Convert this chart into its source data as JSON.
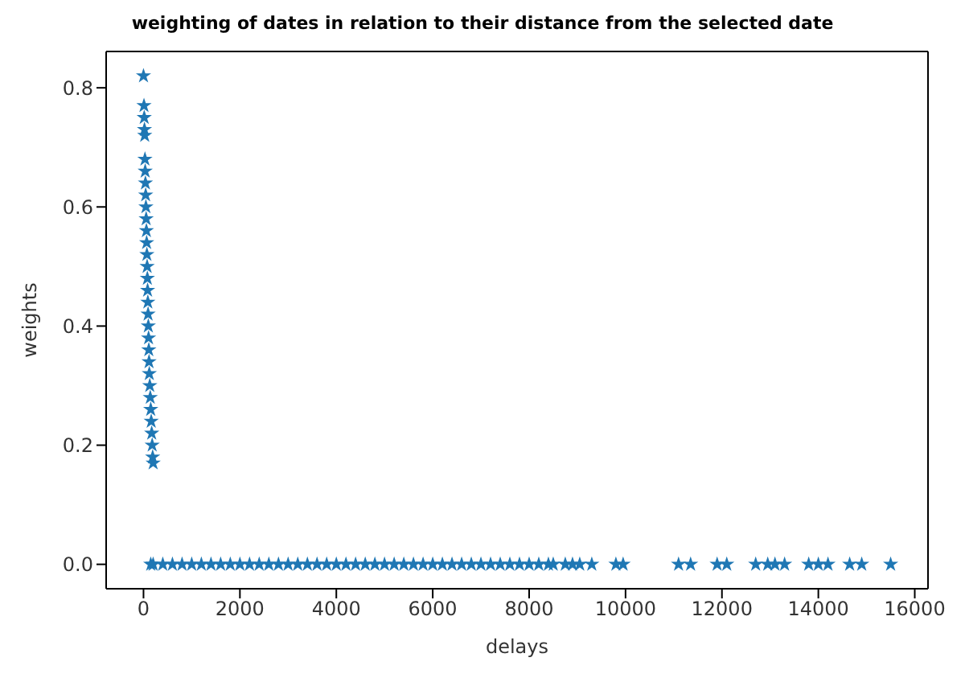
{
  "chart_data": {
    "type": "scatter",
    "title": "weighting of dates in relation to their distance from the selected date",
    "xlabel": "delays",
    "ylabel": "weights",
    "marker": "star",
    "legend": false,
    "xlim": [
      -775,
      16275
    ],
    "xticks": [
      0,
      2000,
      4000,
      6000,
      8000,
      10000,
      12000,
      14000,
      16000
    ],
    "ylim": [
      -0.041,
      0.861
    ],
    "yticks": [
      {
        "value": 0,
        "label": "0.0"
      },
      {
        "value": 0.2,
        "label": "0.2"
      },
      {
        "value": 0.4,
        "label": "0.4"
      },
      {
        "value": 0.6,
        "label": "0.6"
      },
      {
        "value": 0.8,
        "label": "0.8"
      }
    ],
    "series": [
      {
        "color": "#1f77b4",
        "x": [
          0,
          10,
          15,
          20,
          25,
          30,
          35,
          40,
          45,
          50,
          55,
          60,
          65,
          70,
          75,
          80,
          85,
          90,
          95,
          100,
          105,
          110,
          115,
          120,
          130,
          140,
          150,
          160,
          170,
          180,
          190,
          200,
          150,
          200,
          400,
          600,
          800,
          1000,
          1200,
          1400,
          1600,
          1800,
          2000,
          2200,
          2400,
          2600,
          2800,
          3000,
          3200,
          3400,
          3600,
          3800,
          4000,
          4200,
          4400,
          4600,
          4800,
          5000,
          5200,
          5400,
          5600,
          5800,
          6000,
          6200,
          6400,
          6600,
          6800,
          7000,
          7200,
          7400,
          7600,
          7800,
          8000,
          8200,
          8400,
          8500,
          8750,
          8900,
          9050,
          9300,
          9800,
          9950,
          11100,
          11350,
          11900,
          12100,
          12700,
          12950,
          13100,
          13300,
          13800,
          14000,
          14200,
          14650,
          14900,
          15500
        ],
        "values": [
          0.82,
          0.77,
          0.75,
          0.73,
          0.72,
          0.68,
          0.66,
          0.64,
          0.62,
          0.6,
          0.58,
          0.56,
          0.54,
          0.52,
          0.5,
          0.48,
          0.46,
          0.44,
          0.42,
          0.4,
          0.38,
          0.36,
          0.34,
          0.32,
          0.3,
          0.28,
          0.26,
          0.24,
          0.22,
          0.2,
          0.18,
          0.17,
          0,
          0,
          0,
          0,
          0,
          0,
          0,
          0,
          0,
          0,
          0,
          0,
          0,
          0,
          0,
          0,
          0,
          0,
          0,
          0,
          0,
          0,
          0,
          0,
          0,
          0,
          0,
          0,
          0,
          0,
          0,
          0,
          0,
          0,
          0,
          0,
          0,
          0,
          0,
          0,
          0,
          0,
          0,
          0,
          0,
          0,
          0,
          0,
          0,
          0,
          0,
          0,
          0,
          0,
          0,
          0,
          0,
          0,
          0,
          0,
          0,
          0,
          0,
          0
        ]
      }
    ]
  }
}
